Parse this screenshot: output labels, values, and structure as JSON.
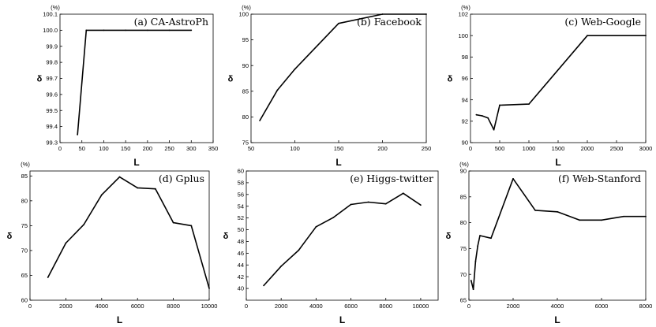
{
  "chart_data": [
    {
      "type": "line",
      "title": "(a)  CA-AstroPh",
      "xlabel": "L",
      "ylabel": "δ",
      "yunit": "(%)",
      "xlim": [
        0,
        350
      ],
      "ylim": [
        99.3,
        100.1
      ],
      "xticks": [
        0,
        50,
        100,
        150,
        200,
        250,
        300,
        350
      ],
      "yticks": [
        99.3,
        99.4,
        99.5,
        99.6,
        99.7,
        99.8,
        99.9,
        100.0,
        100.1
      ],
      "ydec": 1,
      "series": [
        {
          "x": [
            40,
            60,
            100,
            150,
            200,
            250,
            300
          ],
          "values": [
            99.35,
            100.0,
            100.0,
            100.0,
            100.0,
            100.0,
            100.0
          ]
        }
      ]
    },
    {
      "type": "line",
      "title": "(b)  Facebook",
      "xlabel": "L",
      "ylabel": "δ",
      "yunit": "(%)",
      "xlim": [
        50,
        250
      ],
      "ylim": [
        75,
        100
      ],
      "xticks": [
        50,
        100,
        150,
        200,
        250
      ],
      "yticks": [
        75,
        80,
        85,
        90,
        95,
        100
      ],
      "ydec": 0,
      "series": [
        {
          "x": [
            60,
            80,
            100,
            150,
            200,
            250
          ],
          "values": [
            79.3,
            85.2,
            89.3,
            98.2,
            100,
            100
          ]
        }
      ]
    },
    {
      "type": "line",
      "title": "(c)  Web-Google",
      "xlabel": "L",
      "ylabel": "δ",
      "yunit": "(%)",
      "xlim": [
        0,
        3000
      ],
      "ylim": [
        90,
        102
      ],
      "xticks": [
        0,
        500,
        1000,
        1500,
        2000,
        2500,
        3000
      ],
      "yticks": [
        90,
        92,
        94,
        96,
        98,
        100,
        102
      ],
      "ydec": 0,
      "series": [
        {
          "x": [
            100,
            200,
            300,
            400,
            500,
            1000,
            2000,
            3000
          ],
          "values": [
            92.6,
            92.5,
            92.3,
            91.2,
            93.5,
            93.6,
            100,
            100
          ]
        }
      ]
    },
    {
      "type": "line",
      "title": "(d)  Gplus",
      "xlabel": "L",
      "ylabel": "δ",
      "yunit": "(%)",
      "xlim": [
        0,
        10000
      ],
      "ylim": [
        60,
        86
      ],
      "xticks": [
        0,
        2000,
        4000,
        6000,
        8000,
        10000
      ],
      "yticks": [
        60,
        65,
        70,
        75,
        80,
        85
      ],
      "ydec": 0,
      "series": [
        {
          "x": [
            1000,
            2000,
            3000,
            4000,
            5000,
            6000,
            7000,
            8000,
            9000,
            10000
          ],
          "values": [
            64.6,
            71.5,
            75.2,
            81.2,
            84.8,
            82.6,
            82.4,
            75.6,
            75.0,
            62.4
          ]
        }
      ]
    },
    {
      "type": "line",
      "title": "(e)  Higgs-twitter",
      "xlabel": "L",
      "ylabel": "δ",
      "yunit": "",
      "xlim": [
        0,
        11000
      ],
      "ylim": [
        38,
        60
      ],
      "xticks": [
        0,
        2000,
        4000,
        6000,
        8000,
        10000
      ],
      "yticks": [
        40,
        42,
        44,
        46,
        48,
        50,
        52,
        54,
        56,
        58,
        60
      ],
      "ydec": 0,
      "series": [
        {
          "x": [
            1000,
            2000,
            3000,
            4000,
            5000,
            6000,
            7000,
            8000,
            9000,
            10000
          ],
          "values": [
            40.5,
            43.8,
            46.5,
            50.5,
            52.1,
            54.3,
            54.7,
            54.4,
            56.2,
            54.2
          ]
        }
      ]
    },
    {
      "type": "line",
      "title": "(f)  Web-Stanford",
      "xlabel": "L",
      "ylabel": "δ",
      "yunit": "(%)",
      "xlim": [
        0,
        8000
      ],
      "ylim": [
        65,
        90
      ],
      "xticks": [
        0,
        2000,
        4000,
        6000,
        8000
      ],
      "yticks": [
        65,
        70,
        75,
        80,
        85,
        90
      ],
      "ydec": 0,
      "series": [
        {
          "x": [
            100,
            200,
            300,
            400,
            500,
            1000,
            2000,
            3000,
            4000,
            5000,
            6000,
            7000,
            8000
          ],
          "values": [
            68.8,
            67.1,
            72.5,
            75.5,
            77.5,
            77.0,
            88.5,
            82.4,
            82.1,
            80.5,
            80.5,
            81.2,
            81.2
          ]
        }
      ]
    }
  ]
}
